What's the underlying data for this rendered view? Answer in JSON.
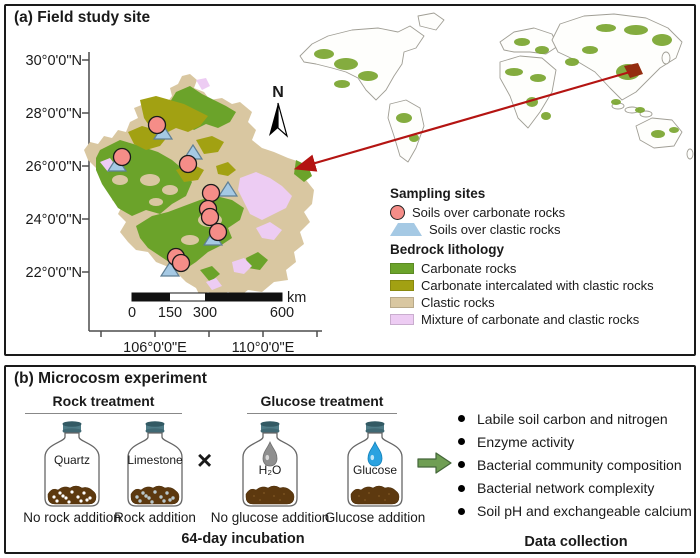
{
  "panel_a": {
    "title": "(a) Field study site",
    "north_label": "N",
    "y_axis_labels": [
      "30°0'0\"N",
      "28°0'0\"N",
      "26°0'0\"N",
      "24°0'0\"N",
      "22°0'0\"N"
    ],
    "x_axis_labels": [
      "106°0'0\"E",
      "110°0'0\"E"
    ],
    "scalebar": {
      "ticks": [
        "0",
        "150",
        "300",
        "600"
      ],
      "unit": "km"
    },
    "legend": {
      "sites_title": "Sampling sites",
      "site_items": [
        {
          "marker": "circle",
          "label": "Soils over carbonate rocks",
          "color": "#f58d88"
        },
        {
          "marker": "triangle",
          "label": "Soils over clastic rocks",
          "color": "#a5c9e4"
        }
      ],
      "lithology_title": "Bedrock lithology",
      "lithology_items": [
        {
          "label": "Carbonate rocks",
          "color": "#6ba32a"
        },
        {
          "label": "Carbonate intercalated with clastic rocks",
          "color": "#a2a112"
        },
        {
          "label": "Clastic rocks",
          "color": "#d9c7a1"
        },
        {
          "label": "Mixture of carbonate and clastic rocks",
          "color": "#edccf3"
        }
      ]
    },
    "map": {
      "carbonate_sites": [
        [
          157,
          125
        ],
        [
          122,
          157
        ],
        [
          188,
          164
        ],
        [
          211,
          193
        ],
        [
          208,
          209
        ],
        [
          210,
          217
        ],
        [
          218,
          232
        ],
        [
          176,
          257
        ],
        [
          181,
          263
        ]
      ],
      "clastic_sites": [
        [
          163,
          133
        ],
        [
          117,
          165
        ],
        [
          193,
          153
        ],
        [
          228,
          190
        ],
        [
          213,
          239
        ],
        [
          170,
          270
        ]
      ]
    }
  },
  "panel_b": {
    "title": "(b) Microcosm experiment",
    "rock_treatment": {
      "title": "Rock treatment",
      "jars": [
        {
          "content": "Quartz",
          "label": "No rock addition"
        },
        {
          "content": "Limestone",
          "label": "Rock addition"
        }
      ]
    },
    "cross": "×",
    "glucose_treatment": {
      "title": "Glucose treatment",
      "jars": [
        {
          "content": "H₂O",
          "label": "No glucose addition"
        },
        {
          "content": "Glucose",
          "label": "Glucose addition"
        }
      ]
    },
    "incubation_label": "64-day incubation",
    "data_collection": {
      "title": "Data collection",
      "items": [
        "Labile soil carbon and nitrogen",
        "Enzyme activity",
        "Bacterial community composition",
        "Bacterial network complexity",
        "Soil pH and exchangeable calcium"
      ]
    }
  }
}
